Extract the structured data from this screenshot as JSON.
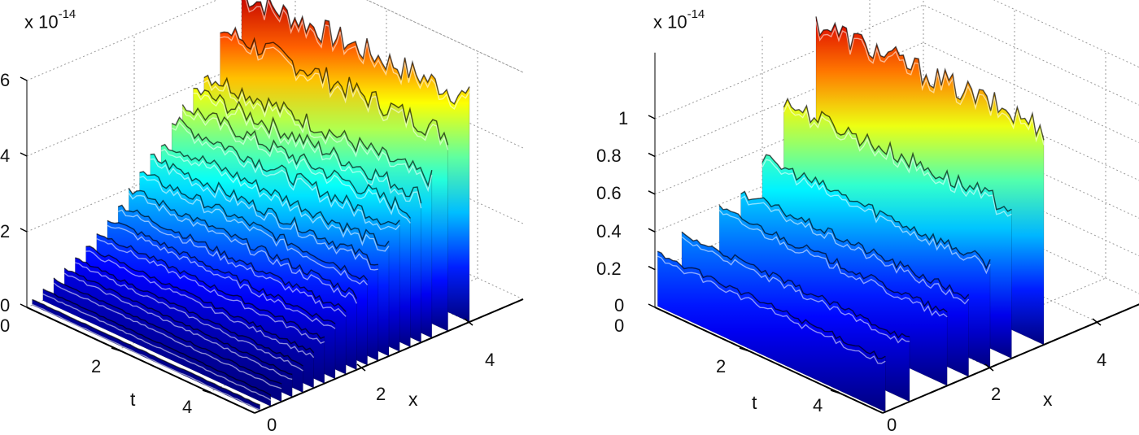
{
  "chart_data": [
    {
      "type": "surface",
      "panel": "left",
      "title": "",
      "z_scale_label": "x 10",
      "z_scale_exponent": "-14",
      "xlabel": "x",
      "ylabel": "t",
      "zlabel": "",
      "x_ticks": [
        "0",
        "2",
        "4"
      ],
      "t_ticks": [
        "0",
        "2",
        "4"
      ],
      "z_ticks": [
        "0",
        "2",
        "4",
        "6"
      ],
      "xlim": [
        0,
        5
      ],
      "tlim": [
        0,
        5
      ],
      "zlim": [
        0,
        6
      ],
      "grid": true,
      "colormap": "jet",
      "description": "Stepped ridges along t; height grows with x from ~0 to ~6e-14",
      "series": [
        {
          "x": 0.1,
          "z": 0.15
        },
        {
          "x": 0.3,
          "z": 0.3
        },
        {
          "x": 0.5,
          "z": 0.45
        },
        {
          "x": 0.7,
          "z": 0.6
        },
        {
          "x": 0.9,
          "z": 0.75
        },
        {
          "x": 1.1,
          "z": 0.95
        },
        {
          "x": 1.3,
          "z": 1.2
        },
        {
          "x": 1.5,
          "z": 1.45
        },
        {
          "x": 1.7,
          "z": 1.7
        },
        {
          "x": 1.9,
          "z": 2.0
        },
        {
          "x": 2.1,
          "z": 2.3
        },
        {
          "x": 2.3,
          "z": 2.6
        },
        {
          "x": 2.5,
          "z": 2.9
        },
        {
          "x": 2.7,
          "z": 3.3
        },
        {
          "x": 2.9,
          "z": 3.6
        },
        {
          "x": 3.1,
          "z": 3.9
        },
        {
          "x": 3.3,
          "z": 4.2
        },
        {
          "x": 3.6,
          "z": 5.2
        },
        {
          "x": 4.0,
          "z": 5.9
        }
      ]
    },
    {
      "type": "surface",
      "panel": "right",
      "title": "",
      "z_scale_label": "x 10",
      "z_scale_exponent": "-14",
      "xlabel": "x",
      "ylabel": "t",
      "zlabel": "",
      "x_ticks": [
        "0",
        "2",
        "4"
      ],
      "t_ticks": [
        "0",
        "2",
        "4"
      ],
      "z_ticks": [
        "0",
        "0.2",
        "0.4",
        "0.6",
        "0.8",
        "1"
      ],
      "xlim": [
        0,
        5
      ],
      "tlim": [
        0,
        5
      ],
      "zlim": [
        0,
        1.2
      ],
      "grid": true,
      "colormap": "jet",
      "description": "Fewer, taller stepped ridges; height grows with x up to ~1.15e-14",
      "series": [
        {
          "x": 0.05,
          "z": 0.28
        },
        {
          "x": 0.5,
          "z": 0.33
        },
        {
          "x": 1.2,
          "z": 0.38
        },
        {
          "x": 1.6,
          "z": 0.42
        },
        {
          "x": 2.0,
          "z": 0.55
        },
        {
          "x": 2.4,
          "z": 0.8
        },
        {
          "x": 3.0,
          "z": 1.15
        }
      ]
    }
  ]
}
